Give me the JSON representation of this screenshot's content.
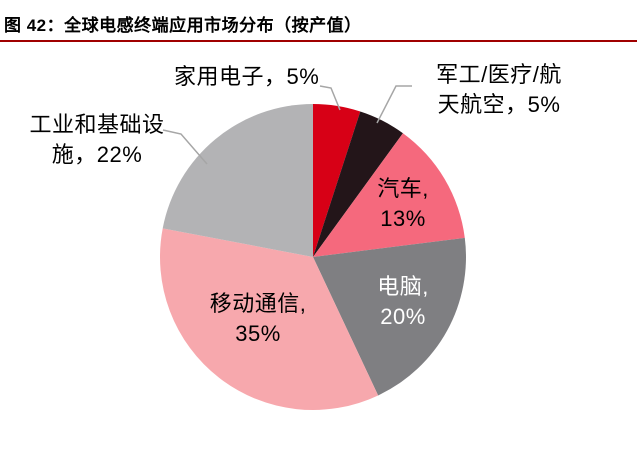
{
  "figure": {
    "title": "图 42：全球电感终端应用市场分布（按产值）"
  },
  "chart_data": {
    "type": "pie",
    "title": "全球电感终端应用市场分布（按产值）",
    "unit": "%",
    "start_angle_deg": 0,
    "direction": "clockwise",
    "slices": [
      {
        "id": "home-electronics",
        "label": "家用电子",
        "value": 5,
        "color": "#D70016"
      },
      {
        "id": "military-medical-aerospace",
        "label": "军工/医疗/航天航空",
        "value": 5,
        "color": "#231519"
      },
      {
        "id": "automotive",
        "label": "汽车",
        "value": 13,
        "color": "#F5697D"
      },
      {
        "id": "computer",
        "label": "电脑",
        "value": 20,
        "color": "#7F7F82"
      },
      {
        "id": "mobile-communications",
        "label": "移动通信",
        "value": 35,
        "color": "#F7A8AD"
      },
      {
        "id": "industry-infrastructure",
        "label": "工业和基础设施",
        "value": 22,
        "color": "#B3B3B5"
      }
    ]
  },
  "chart_labels": {
    "home_electronics": {
      "text": "家用电子，5%"
    },
    "military": {
      "line1": "军工/医疗/航",
      "line2": "天航空，5%"
    },
    "industry": {
      "line1": "工业和基础设",
      "line2": "施，22%"
    },
    "automotive": {
      "line1": "汽车,",
      "line2": "13%"
    },
    "computer": {
      "line1": "电脑,",
      "line2": "20%"
    },
    "mobile": {
      "line1": "移动通信,",
      "line2": "35%"
    }
  },
  "colors": {
    "title_underline": "#A00000",
    "leader_line": "#A6A6A6",
    "slice_label_dark": "#000000",
    "slice_label_light": "#FFFFFF",
    "background": "#FFFFFF"
  }
}
